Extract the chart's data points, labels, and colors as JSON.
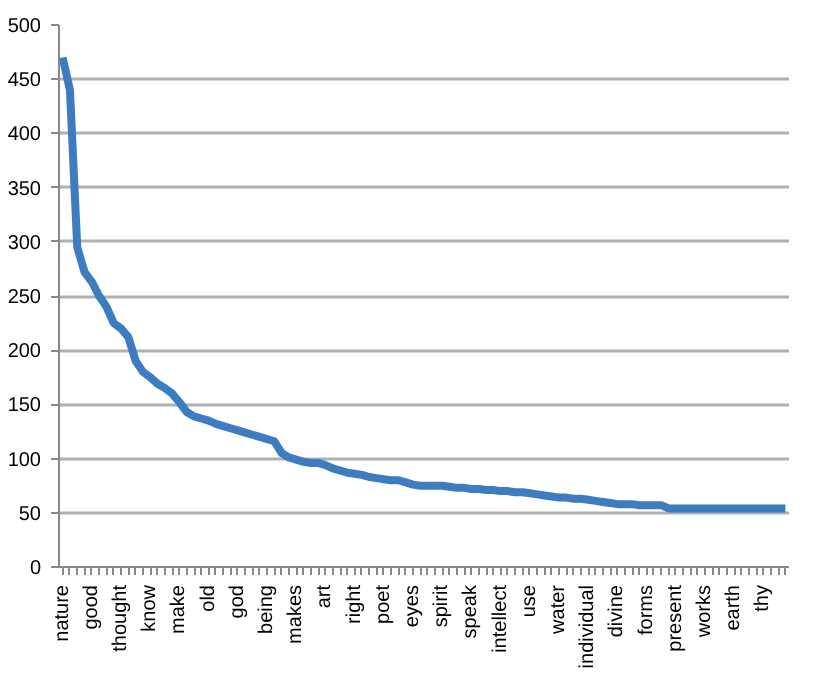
{
  "chart_data": {
    "type": "line",
    "categories": [
      "nature",
      null,
      null,
      null,
      "good",
      null,
      null,
      null,
      "thought",
      null,
      null,
      null,
      "know",
      null,
      null,
      null,
      "make",
      null,
      null,
      null,
      "old",
      null,
      null,
      null,
      "god",
      null,
      null,
      null,
      "being",
      null,
      null,
      null,
      "makes",
      null,
      null,
      null,
      "art",
      null,
      null,
      null,
      "right",
      null,
      null,
      null,
      "poet",
      null,
      null,
      null,
      "eyes",
      null,
      null,
      null,
      "spirit",
      null,
      null,
      null,
      "speak",
      null,
      null,
      null,
      "intellect",
      null,
      null,
      null,
      "use",
      null,
      null,
      null,
      "water",
      null,
      null,
      null,
      "individual",
      null,
      null,
      null,
      "divine",
      null,
      null,
      null,
      "forms",
      null,
      null,
      null,
      "present",
      null,
      null,
      null,
      "works",
      null,
      null,
      null,
      "earth",
      null,
      null,
      null,
      "thy",
      null,
      null,
      null
    ],
    "series": [
      {
        "color": "#3d7cc0",
        "values": [
          470,
          440,
          295,
          272,
          263,
          250,
          240,
          225,
          220,
          212,
          190,
          180,
          175,
          169,
          165,
          160,
          152,
          143,
          139,
          137,
          135,
          132,
          130,
          128,
          126,
          124,
          122,
          120,
          118,
          116,
          105,
          101,
          99,
          97,
          96,
          96,
          94,
          91,
          89,
          87,
          86,
          85,
          83,
          82,
          81,
          80,
          80,
          78,
          76,
          75,
          75,
          75,
          75,
          74,
          73,
          73,
          72,
          72,
          71,
          71,
          70,
          70,
          69,
          69,
          68,
          67,
          66,
          65,
          64,
          64,
          63,
          63,
          62,
          61,
          60,
          59,
          58,
          58,
          58,
          57,
          57,
          57,
          57,
          54,
          54,
          54,
          54,
          54,
          54,
          54,
          54,
          54,
          54,
          54,
          54,
          54,
          54,
          54,
          54,
          54
        ]
      }
    ],
    "ylim": [
      0,
      500
    ],
    "yticks": [
      0,
      50,
      100,
      150,
      200,
      250,
      300,
      350,
      400,
      450,
      500
    ],
    "grid": "y",
    "marker": "none",
    "line_style": "solid"
  }
}
